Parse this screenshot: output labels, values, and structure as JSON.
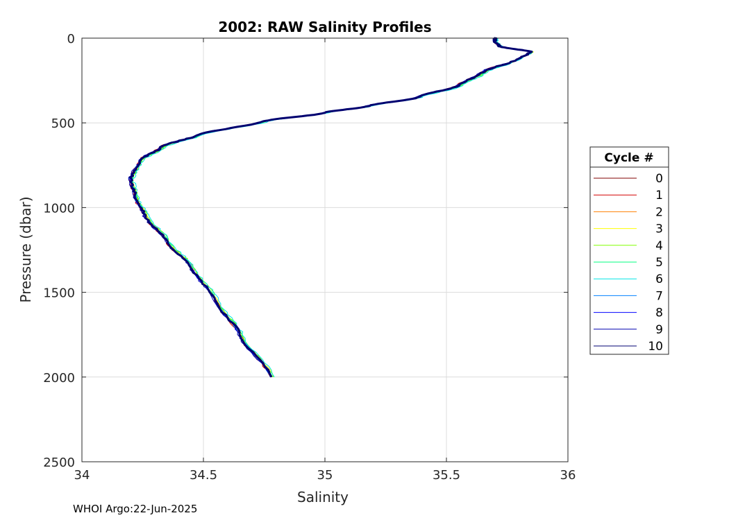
{
  "footer": "WHOI Argo:22-Jun-2025",
  "chart_data": {
    "type": "line",
    "title": "2002: RAW Salinity Profiles",
    "xlabel": "Salinity",
    "ylabel": "Pressure (dbar)",
    "xlim": [
      34,
      36
    ],
    "ylim": [
      0,
      2500
    ],
    "y_reversed": true,
    "xticks": [
      "34",
      "34.5",
      "35",
      "35.5",
      "36"
    ],
    "yticks": [
      "0",
      "500",
      "1000",
      "1500",
      "2000",
      "2500"
    ],
    "grid": true,
    "legend": {
      "title": "Cycle #",
      "placement": "right"
    },
    "series": [
      {
        "name": "0",
        "color": "#800000",
        "offset": 0.005
      },
      {
        "name": "1",
        "color": "#d40000",
        "offset": -0.01
      },
      {
        "name": "2",
        "color": "#ff7f00",
        "offset": 0.008
      },
      {
        "name": "3",
        "color": "#ffff00",
        "offset": 0.015
      },
      {
        "name": "4",
        "color": "#80ff00",
        "offset": 0.02
      },
      {
        "name": "5",
        "color": "#00ff80",
        "offset": 0.01
      },
      {
        "name": "6",
        "color": "#00e5e5",
        "offset": 0.03
      },
      {
        "name": "7",
        "color": "#0080ff",
        "offset": 0.0
      },
      {
        "name": "8",
        "color": "#0000ff",
        "offset": -0.005
      },
      {
        "name": "9",
        "color": "#0000b0",
        "offset": -0.012
      },
      {
        "name": "10",
        "color": "#000070",
        "offset": 0.0
      }
    ],
    "profile": [
      {
        "s": 35.7,
        "p": 0
      },
      {
        "s": 35.7,
        "p": 20
      },
      {
        "s": 35.72,
        "p": 50
      },
      {
        "s": 35.85,
        "p": 80
      },
      {
        "s": 35.8,
        "p": 120
      },
      {
        "s": 35.65,
        "p": 200
      },
      {
        "s": 35.55,
        "p": 280
      },
      {
        "s": 35.38,
        "p": 350
      },
      {
        "s": 35.18,
        "p": 400
      },
      {
        "s": 35.0,
        "p": 440
      },
      {
        "s": 34.75,
        "p": 490
      },
      {
        "s": 34.48,
        "p": 570
      },
      {
        "s": 34.33,
        "p": 640
      },
      {
        "s": 34.24,
        "p": 720
      },
      {
        "s": 34.2,
        "p": 830
      },
      {
        "s": 34.22,
        "p": 940
      },
      {
        "s": 34.26,
        "p": 1050
      },
      {
        "s": 34.35,
        "p": 1200
      },
      {
        "s": 34.45,
        "p": 1350
      },
      {
        "s": 34.55,
        "p": 1550
      },
      {
        "s": 34.65,
        "p": 1750
      },
      {
        "s": 34.78,
        "p": 2000
      }
    ]
  }
}
